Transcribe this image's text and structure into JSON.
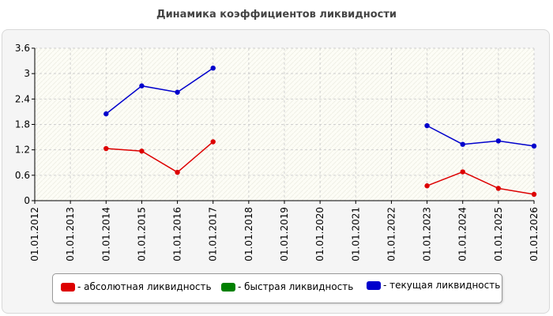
{
  "chart_data": {
    "type": "line",
    "title": "Динамика коэффициентов ликвидности",
    "xlabel": "",
    "ylabel": "",
    "categories": [
      "01.01.2012",
      "01.01.2013",
      "01.01.2014",
      "01.01.2015",
      "01.01.2016",
      "01.01.2017",
      "01.01.2018",
      "01.01.2019",
      "01.01.2020",
      "01.01.2021",
      "01.01.2022",
      "01.01.2023",
      "01.01.2024",
      "01.01.2025",
      "01.01.2026"
    ],
    "ylim": [
      0,
      3.6
    ],
    "yticks": [
      "0",
      "0.6",
      "1.2",
      "1.8",
      "2.4",
      "3",
      "3.6"
    ],
    "grid": true,
    "legend_position": "bottom",
    "series": [
      {
        "name": "- абсолютная ликвидность",
        "color": "#dd0000",
        "values": [
          null,
          null,
          1.23,
          1.17,
          0.67,
          1.39,
          null,
          null,
          null,
          null,
          null,
          0.35,
          0.68,
          0.29,
          0.15
        ]
      },
      {
        "name": "- быстрая ликвидность",
        "color": "#008000",
        "values": [
          null,
          null,
          null,
          null,
          null,
          null,
          null,
          null,
          null,
          null,
          null,
          null,
          null,
          null,
          null
        ]
      },
      {
        "name": "- текущая ликвидность",
        "color": "#0000cc",
        "values": [
          null,
          null,
          2.05,
          2.71,
          2.56,
          3.13,
          null,
          null,
          null,
          null,
          null,
          1.77,
          1.33,
          1.41,
          1.29
        ]
      }
    ]
  }
}
